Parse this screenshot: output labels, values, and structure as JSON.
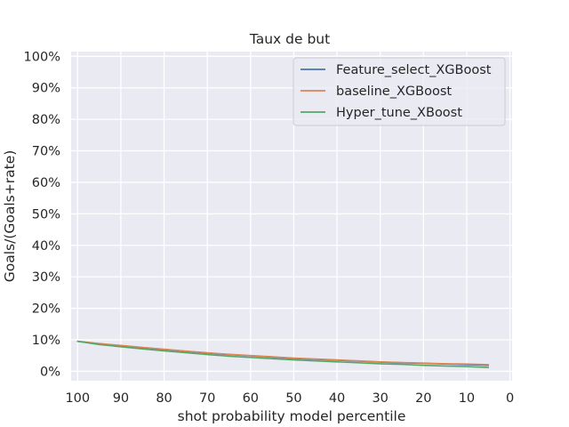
{
  "chart_data": {
    "type": "line",
    "title": "Taux de but",
    "xlabel": "shot probability model percentile",
    "ylabel": "Goals/(Goals+rate)",
    "xlim": [
      101.5,
      -0.5
    ],
    "ylim": [
      -0.03,
      1.015
    ],
    "x_reversed": true,
    "x_ticks": [
      100,
      90,
      80,
      70,
      60,
      50,
      40,
      30,
      20,
      10,
      0
    ],
    "y_ticks": [
      0,
      0.1,
      0.2,
      0.3,
      0.4,
      0.5,
      0.6,
      0.7,
      0.8,
      0.9,
      1.0
    ],
    "y_tick_labels": [
      "0%",
      "10%",
      "20%",
      "30%",
      "40%",
      "50%",
      "60%",
      "70%",
      "80%",
      "90%",
      "100%"
    ],
    "x_tick_labels": [
      "100",
      "90",
      "80",
      "70",
      "60",
      "50",
      "40",
      "30",
      "20",
      "10",
      "0"
    ],
    "grid": true,
    "legend_position": "top-right",
    "series": [
      {
        "name": "Feature_select_XGBoost",
        "color": "#4c72b0",
        "x": [
          100,
          95,
          90,
          85,
          80,
          75,
          70,
          65,
          60,
          55,
          50,
          45,
          40,
          35,
          30,
          25,
          20,
          15,
          10,
          5
        ],
        "values": [
          0.095,
          0.087,
          0.081,
          0.075,
          0.069,
          0.063,
          0.058,
          0.053,
          0.049,
          0.045,
          0.041,
          0.038,
          0.035,
          0.032,
          0.029,
          0.027,
          0.025,
          0.023,
          0.021,
          0.019
        ]
      },
      {
        "name": "baseline_XGBoost",
        "color": "#dd8452",
        "x": [
          100,
          95,
          90,
          85,
          80,
          75,
          70,
          65,
          60,
          55,
          50,
          45,
          40,
          35,
          30,
          25,
          20,
          15,
          10,
          5
        ],
        "values": [
          0.095,
          0.088,
          0.082,
          0.076,
          0.07,
          0.064,
          0.059,
          0.054,
          0.05,
          0.046,
          0.042,
          0.039,
          0.036,
          0.033,
          0.03,
          0.028,
          0.026,
          0.024,
          0.023,
          0.021
        ]
      },
      {
        "name": "Hyper_tune_XBoost",
        "color": "#55a868",
        "x": [
          100,
          95,
          90,
          85,
          80,
          75,
          70,
          65,
          60,
          55,
          50,
          45,
          40,
          35,
          30,
          25,
          20,
          15,
          10,
          5
        ],
        "values": [
          0.095,
          0.085,
          0.078,
          0.071,
          0.065,
          0.059,
          0.053,
          0.048,
          0.044,
          0.04,
          0.036,
          0.033,
          0.03,
          0.027,
          0.024,
          0.022,
          0.019,
          0.017,
          0.015,
          0.012
        ]
      }
    ]
  }
}
